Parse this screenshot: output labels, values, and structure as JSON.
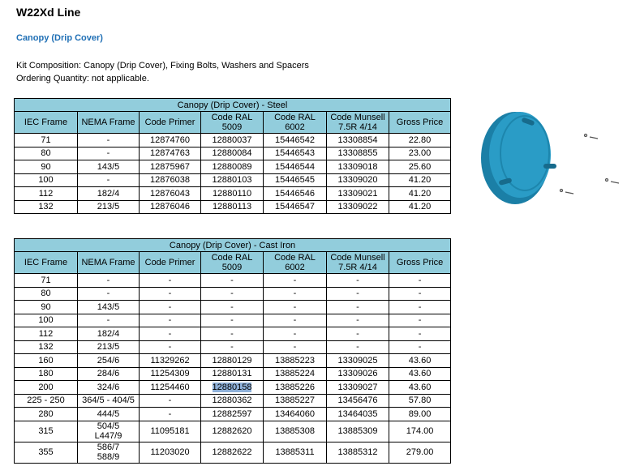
{
  "page_title": "W22Xd Line",
  "subtitle": "Canopy (Drip Cover)",
  "kit_composition": "Kit Composition: Canopy (Drip Cover), Fixing Bolts, Washers and Spacers",
  "ordering_quantity": "Ordering Quantity: not applicable.",
  "columns": [
    "IEC Frame",
    "NEMA Frame",
    "Code Primer",
    "Code RAL 5009",
    "Code RAL 6002",
    "Code Munsell 7.5R 4/14",
    "Gross Price"
  ],
  "steel": {
    "title": "Canopy (Drip Cover) - Steel",
    "rows": [
      [
        "71",
        "-",
        "12874760",
        "12880037",
        "15446542",
        "13308854",
        "22.80"
      ],
      [
        "80",
        "-",
        "12874763",
        "12880084",
        "15446543",
        "13308855",
        "23.00"
      ],
      [
        "90",
        "143/5",
        "12875967",
        "12880089",
        "15446544",
        "13309018",
        "25.60"
      ],
      [
        "100",
        "-",
        "12876038",
        "12880103",
        "15446545",
        "13309020",
        "41.20"
      ],
      [
        "112",
        "182/4",
        "12876043",
        "12880110",
        "15446546",
        "13309021",
        "41.20"
      ],
      [
        "132",
        "213/5",
        "12876046",
        "12880113",
        "15446547",
        "13309022",
        "41.20"
      ]
    ]
  },
  "cast_iron": {
    "title": "Canopy (Drip Cover) - Cast Iron",
    "rows": [
      [
        "71",
        "-",
        "-",
        "-",
        "-",
        "-",
        "-"
      ],
      [
        "80",
        "-",
        "-",
        "-",
        "-",
        "-",
        "-"
      ],
      [
        "90",
        "143/5",
        "-",
        "-",
        "-",
        "-",
        "-"
      ],
      [
        "100",
        "-",
        "-",
        "-",
        "-",
        "-",
        "-"
      ],
      [
        "112",
        "182/4",
        "-",
        "-",
        "-",
        "-",
        "-"
      ],
      [
        "132",
        "213/5",
        "-",
        "-",
        "-",
        "-",
        "-"
      ],
      [
        "160",
        "254/6",
        "11329262",
        "12880129",
        "13885223",
        "13309025",
        "43.60"
      ],
      [
        "180",
        "284/6",
        "11254309",
        "12880131",
        "13885224",
        "13309026",
        "43.60"
      ],
      [
        "200",
        "324/6",
        "11254460",
        "12880158",
        "13885226",
        "13309027",
        "43.60"
      ],
      [
        "225 - 250",
        "364/5 - 404/5",
        "-",
        "12880362",
        "13885227",
        "13456476",
        "57.80"
      ],
      [
        "280",
        "444/5",
        "-",
        "12882597",
        "13464060",
        "13464035",
        "89.00"
      ],
      [
        "315",
        "504/5\nL447/9",
        "11095181",
        "12882620",
        "13885308",
        "13885309",
        "174.00"
      ],
      [
        "355",
        "586/7\n588/9",
        "11203020",
        "12882622",
        "13885311",
        "13885312",
        "279.00"
      ]
    ],
    "selected_cell": "12880158"
  },
  "colors": {
    "header_bg": "#92cddc",
    "subtitle": "#1f6fb5",
    "product": "#2a8fb5"
  },
  "image": "canopy-drip-cover-product-icon"
}
